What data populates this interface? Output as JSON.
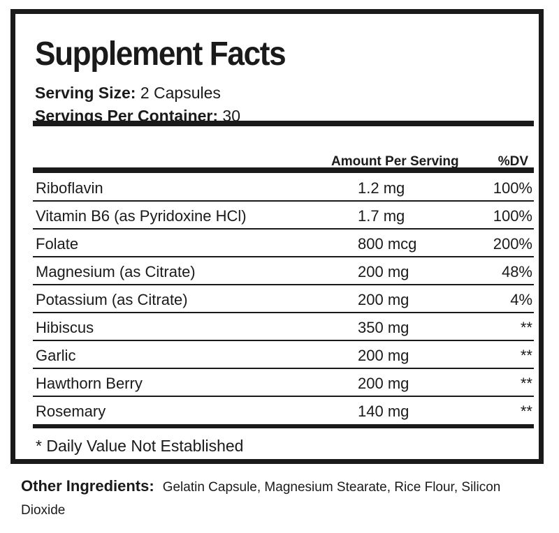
{
  "title": "Supplement Facts",
  "serving_size": {
    "label": "Serving Size:",
    "value": "2 Capsules"
  },
  "servings_per_container": {
    "label": "Servings Per Container:",
    "value": "30"
  },
  "columns": {
    "amount": "Amount Per Serving",
    "dv": "%DV"
  },
  "rows": [
    {
      "name": "Riboflavin",
      "amount": "1.2 mg",
      "dv": "100%"
    },
    {
      "name": "Vitamin B6 (as Pyridoxine HCl)",
      "amount": "1.7 mg",
      "dv": "100%"
    },
    {
      "name": "Folate",
      "amount": "800 mcg",
      "dv": "200%"
    },
    {
      "name": "Magnesium (as Citrate)",
      "amount": "200 mg",
      "dv": "48%"
    },
    {
      "name": "Potassium (as Citrate)",
      "amount": "200 mg",
      "dv": "4%"
    },
    {
      "name": "Hibiscus",
      "amount": "350 mg",
      "dv": "**"
    },
    {
      "name": "Garlic",
      "amount": "200 mg",
      "dv": "**"
    },
    {
      "name": "Hawthorn Berry",
      "amount": "200 mg",
      "dv": "**"
    },
    {
      "name": "Rosemary",
      "amount": "140 mg",
      "dv": "**"
    }
  ],
  "footnote": "* Daily Value Not Established",
  "other_ingredients": {
    "label": "Other Ingredients:",
    "value": "Gelatin Capsule, Magnesium Stearate, Rice Flour, Silicon Dioxide"
  }
}
